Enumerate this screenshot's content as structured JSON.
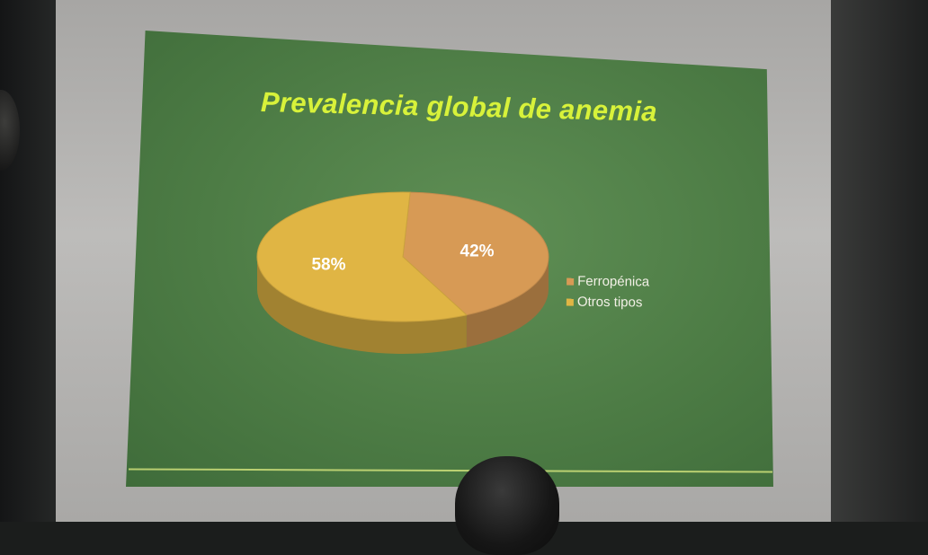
{
  "slide": {
    "title": "Prevalencia global de anemia"
  },
  "chart_data": {
    "type": "pie",
    "title": "Prevalencia global de anemia",
    "categories": [
      "Ferropénica",
      "Otros tipos"
    ],
    "values": [
      42,
      58
    ],
    "data_labels": [
      "42%",
      "58%"
    ],
    "colors": [
      "#d79a55",
      "#e0b544"
    ],
    "legend_placement": "right",
    "style": "3d"
  },
  "legend": {
    "items": [
      {
        "label": "Ferropénica",
        "color": "#d79a55"
      },
      {
        "label": "Otros tipos",
        "color": "#e0b544"
      }
    ]
  }
}
